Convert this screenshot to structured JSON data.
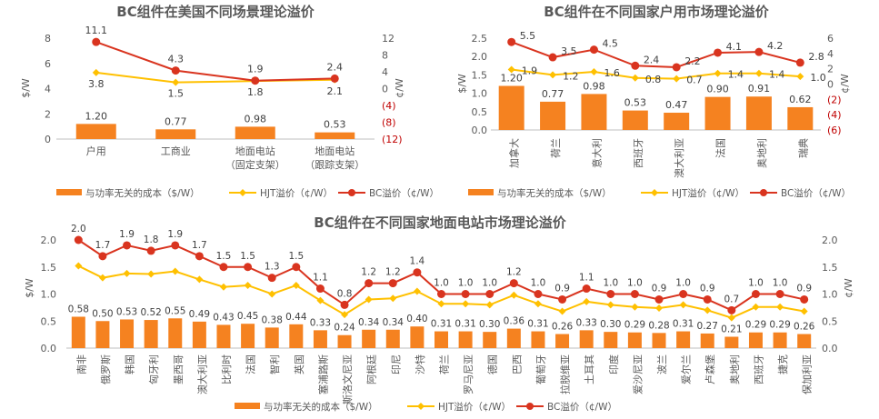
{
  "colors": {
    "cost_bar": "#f58220",
    "hjt_line": "#ffc000",
    "bc_line": "#d9341f",
    "negative_tick": "#c00000"
  },
  "chart_data": [
    {
      "type": "bar",
      "title": "BC组件在美国不同场景理论溢价",
      "categories": [
        "户用",
        "工商业",
        "地面电站\n（固定支架）",
        "地面电站\n（跟踪支架）"
      ],
      "ylabel": "$/W",
      "y2label": "¢/W",
      "ylim": [
        0,
        8
      ],
      "yticks": [
        "0",
        "2",
        "4",
        "6",
        "8"
      ],
      "y2lim": [
        -12,
        12
      ],
      "y2ticks": [
        "(12)",
        "(8)",
        "(4)",
        "0",
        "4",
        "8",
        "12"
      ],
      "series": [
        {
          "name": "与功率无关的成本（$/W）",
          "axis": "left",
          "kind": "bar",
          "values": [
            1.2,
            0.77,
            0.98,
            0.53
          ]
        },
        {
          "name": "HJT溢价（¢/W）",
          "axis": "right",
          "kind": "line",
          "values": [
            3.8,
            1.5,
            1.8,
            2.1
          ]
        },
        {
          "name": "BC溢价（¢/W）",
          "axis": "right",
          "kind": "line",
          "values": [
            11.1,
            4.3,
            1.9,
            2.4
          ]
        }
      ],
      "bar_labels": [
        "1.20",
        "0.77",
        "0.98",
        "0.53"
      ],
      "hjt_labels": [
        "3.8",
        "1.5",
        "1.8",
        "2.1"
      ],
      "bc_labels": [
        "11.1",
        "4.3",
        "1.9",
        "2.4"
      ],
      "legend": "bottom"
    },
    {
      "type": "bar",
      "title": "BC组件在不同国家户用市场理论溢价",
      "categories": [
        "加拿大",
        "荷兰",
        "意大利",
        "西班牙",
        "澳大利亚",
        "法国",
        "奥地利",
        "瑞典"
      ],
      "ylabel": "$/W",
      "y2label": "¢/W",
      "ylim": [
        0,
        2.5
      ],
      "yticks": [
        "0.0",
        "0.5",
        "1.0",
        "1.5",
        "2.0",
        "2.5"
      ],
      "y2lim": [
        -6,
        6
      ],
      "y2ticks": [
        "(6)",
        "(4)",
        "(2)",
        "0",
        "2",
        "4",
        "6"
      ],
      "series": [
        {
          "name": "与功率无关的成本（$/W）",
          "axis": "left",
          "kind": "bar",
          "values": [
            1.2,
            0.77,
            0.98,
            0.53,
            0.47,
            0.9,
            0.91,
            0.62
          ]
        },
        {
          "name": "HJT溢价（¢/W）",
          "axis": "right",
          "kind": "line",
          "values": [
            1.9,
            1.2,
            1.6,
            0.8,
            0.7,
            1.4,
            1.4,
            1.0
          ]
        },
        {
          "name": "BC溢价（¢/W）",
          "axis": "right",
          "kind": "line",
          "values": [
            5.5,
            3.5,
            4.5,
            2.4,
            2.2,
            4.1,
            4.2,
            2.8
          ]
        }
      ],
      "bar_labels": [
        "1.20",
        "0.77",
        "0.98",
        "0.53",
        "0.47",
        "0.90",
        "0.91",
        "0.62"
      ],
      "hjt_labels": [
        "1.9",
        "1.2",
        "1.6",
        "0.8",
        "0.7",
        "1.4",
        "1.4",
        "1.0"
      ],
      "bc_labels": [
        "5.5",
        "3.5",
        "4.5",
        "2.4",
        "2.2",
        "4.1",
        "4.2",
        "2.8"
      ],
      "legend": "bottom"
    },
    {
      "type": "bar",
      "title": "BC组件在不同国家地面电站市场理论溢价",
      "categories": [
        "南非",
        "俄罗斯",
        "韩国",
        "匈牙利",
        "墨西哥",
        "澳大利亚",
        "比利时",
        "法国",
        "智利",
        "英国",
        "塞浦路斯",
        "斯洛文尼亚",
        "阿根廷",
        "印尼",
        "沙特",
        "荷兰",
        "罗马尼亚",
        "德国",
        "巴西",
        "葡萄牙",
        "拉脱维亚",
        "土耳其",
        "印度",
        "爱沙尼亚",
        "波兰",
        "爱尔兰",
        "卢森堡",
        "奥地利",
        "西班牙",
        "捷克",
        "保加利亚"
      ],
      "ylabel": "$/W",
      "y2label": "¢/W",
      "ylim": [
        0,
        2.0
      ],
      "yticks": [
        "0.0",
        "0.5",
        "1.0",
        "1.5",
        "2.0"
      ],
      "y2lim": [
        0,
        2.0
      ],
      "y2ticks": [
        "0.0",
        "0.5",
        "1.0",
        "1.5",
        "2.0"
      ],
      "series": [
        {
          "name": "与功率无关的成本（$/W）",
          "axis": "left",
          "kind": "bar",
          "values": [
            0.58,
            0.5,
            0.53,
            0.52,
            0.55,
            0.49,
            0.43,
            0.45,
            0.38,
            0.44,
            0.33,
            0.24,
            0.34,
            0.34,
            0.4,
            0.31,
            0.31,
            0.3,
            0.36,
            0.31,
            0.26,
            0.33,
            0.3,
            0.29,
            0.28,
            0.31,
            0.27,
            0.21,
            0.29,
            0.29,
            0.26
          ]
        },
        {
          "name": "HJT溢价（¢/W）",
          "axis": "right",
          "kind": "line",
          "values": [
            1.52,
            1.3,
            1.38,
            1.37,
            1.42,
            1.27,
            1.13,
            1.16,
            1.0,
            1.16,
            0.88,
            0.62,
            0.9,
            0.92,
            1.05,
            0.82,
            0.82,
            0.8,
            0.98,
            0.82,
            0.68,
            0.86,
            0.8,
            0.76,
            0.74,
            0.8,
            0.7,
            0.56,
            0.76,
            0.76,
            0.68
          ]
        },
        {
          "name": "BC溢价（¢/W）",
          "axis": "right",
          "kind": "line",
          "values": [
            2.0,
            1.7,
            1.9,
            1.8,
            1.9,
            1.7,
            1.5,
            1.5,
            1.3,
            1.5,
            1.1,
            0.8,
            1.2,
            1.2,
            1.4,
            1.0,
            1.0,
            1.0,
            1.2,
            1.0,
            0.9,
            1.1,
            1.0,
            1.0,
            0.9,
            1.0,
            0.9,
            0.7,
            1.0,
            1.0,
            0.9
          ]
        }
      ],
      "bar_labels": [
        "0.58",
        "0.50",
        "0.53",
        "0.52",
        "0.55",
        "0.49",
        "0.43",
        "0.45",
        "0.38",
        "0.44",
        "0.33",
        "0.24",
        "0.34",
        "0.34",
        "0.40",
        "0.31",
        "0.31",
        "0.30",
        "0.36",
        "0.31",
        "0.26",
        "0.33",
        "0.30",
        "0.29",
        "0.28",
        "0.31",
        "0.27",
        "0.21",
        "0.29",
        "0.29",
        "0.26"
      ],
      "bc_labels": [
        "2.0",
        "1.7",
        "1.9",
        "1.8",
        "1.9",
        "1.7",
        "1.5",
        "1.5",
        "1.3",
        "1.5",
        "1.1",
        "0.8",
        "1.2",
        "1.2",
        "1.4",
        "1.0",
        "1.0",
        "1.0",
        "1.2",
        "1.0",
        "0.9",
        "1.1",
        "1.0",
        "1.0",
        "0.9",
        "1.0",
        "0.9",
        "0.7",
        "1.0",
        "1.0",
        "0.9"
      ],
      "legend": "bottom"
    }
  ]
}
